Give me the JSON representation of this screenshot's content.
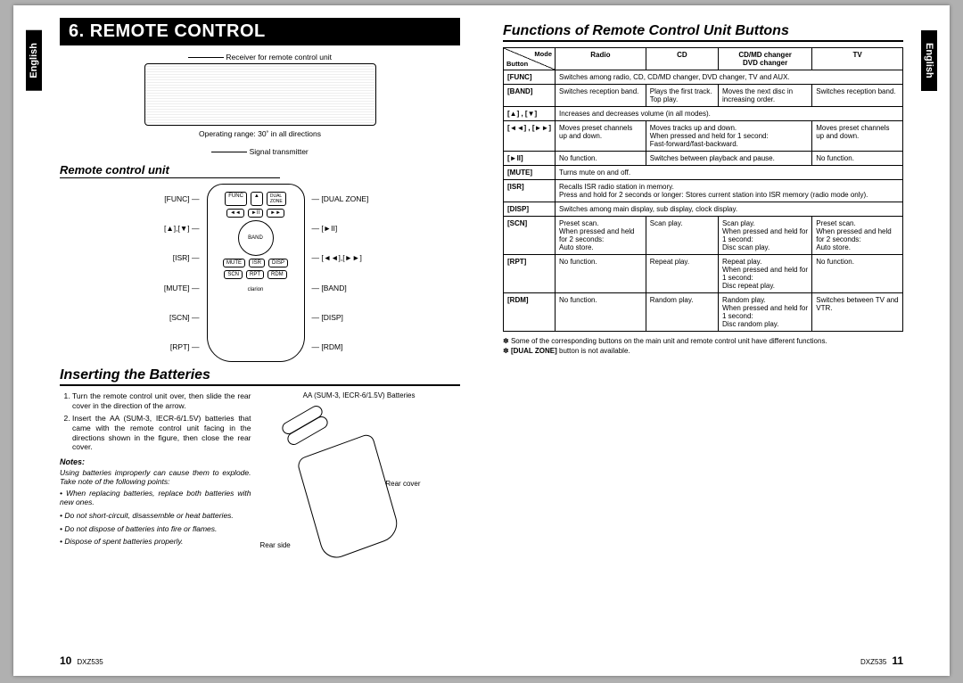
{
  "lang_tab": "English",
  "model": "DXZ535",
  "left": {
    "page_num": "10",
    "main_title": "6. REMOTE CONTROL",
    "receiver_caption": "Receiver for remote control unit",
    "operating_range": "Operating range: 30˚ in all directions",
    "signal_transmitter": "Signal transmitter",
    "remote_unit_title": "Remote control unit",
    "labels_left": [
      "[FUNC]",
      "[▲],[▼]",
      "[ISR]",
      "[MUTE]",
      "[SCN]",
      "[RPT]"
    ],
    "labels_right": [
      "[DUAL ZONE]",
      "[►II]",
      "[◄◄],[►►]",
      "[BAND]",
      "[DISP]",
      "[RDM]"
    ],
    "insert_title": "Inserting the Batteries",
    "steps": [
      "Turn the remote control unit over, then slide the rear cover in the direction of the arrow.",
      "Insert the AA (SUM-3, IECR-6/1.5V) batteries that came with the remote control unit facing in the directions shown in the figure, then close the rear cover."
    ],
    "notes_title": "Notes:",
    "notes_intro": "Using batteries improperly can cause them to explode. Take note of the following points:",
    "notes": [
      "When replacing batteries, replace both batteries with new ones.",
      "Do not short-circuit, disassemble or heat batteries.",
      "Do not dispose of batteries into fire or flames.",
      "Dispose of spent batteries properly."
    ],
    "fig_batt_label": "AA (SUM-3, IECR-6/1.5V) Batteries",
    "fig_rear_cover": "Rear cover",
    "fig_rear_side": "Rear side"
  },
  "right": {
    "page_num": "11",
    "section_title": "Functions of Remote Control Unit Buttons",
    "header": {
      "mode": "Mode",
      "button": "Button",
      "cols": [
        "Radio",
        "CD",
        "CD/MD changer\nDVD changer",
        "TV"
      ]
    },
    "rows": [
      {
        "btn": "[FUNC]",
        "span": "Switches among radio, CD, CD/MD changer, DVD changer, TV and AUX."
      },
      {
        "btn": "[BAND]",
        "cells": [
          "Switches reception band.",
          "Plays the first track. Top play.",
          "Moves the next disc in increasing order.",
          "Switches reception band."
        ]
      },
      {
        "btn": "[▲] , [▼]",
        "span": "Increases and decreases volume (in all modes)."
      },
      {
        "btn": "[◄◄] , [►►]",
        "cells": [
          "Moves preset channels up and down.",
          "Moves tracks up and down.\nWhen pressed and held for 1 second:\nFast-forward/fast-backward.",
          null,
          "Moves preset channels up and down."
        ],
        "merge23": true
      },
      {
        "btn": "[►II]",
        "cells": [
          "No function.",
          "Switches between playback and pause.",
          null,
          "No function."
        ],
        "merge23": true
      },
      {
        "btn": "[MUTE]",
        "span": "Turns mute on and off."
      },
      {
        "btn": "[ISR]",
        "span": "Recalls ISR radio station in memory.\nPress and hold for 2 seconds or longer: Stores current station into ISR memory (radio mode only)."
      },
      {
        "btn": "[DISP]",
        "span": "Switches among main display, sub display, clock display."
      },
      {
        "btn": "[SCN]",
        "cells": [
          "Preset scan.\nWhen pressed and held for 2 seconds:\nAuto store.",
          "Scan play.",
          "Scan play.\nWhen pressed and held for 1 second:\nDisc scan play.",
          "Preset scan.\nWhen pressed and held for 2 seconds:\nAuto store."
        ]
      },
      {
        "btn": "[RPT]",
        "cells": [
          "No function.",
          "Repeat play.",
          "Repeat play.\nWhen pressed and held for 1 second:\nDisc repeat play.",
          "No function."
        ]
      },
      {
        "btn": "[RDM]",
        "cells": [
          "No function.",
          "Random play.",
          "Random play.\nWhen pressed and held for 1 second:\nDisc random play.",
          "Switches between TV and VTR."
        ]
      }
    ],
    "footnotes": [
      "Some of the corresponding buttons on the main unit and remote control unit have different functions.",
      "[DUAL ZONE] button is not available."
    ]
  }
}
